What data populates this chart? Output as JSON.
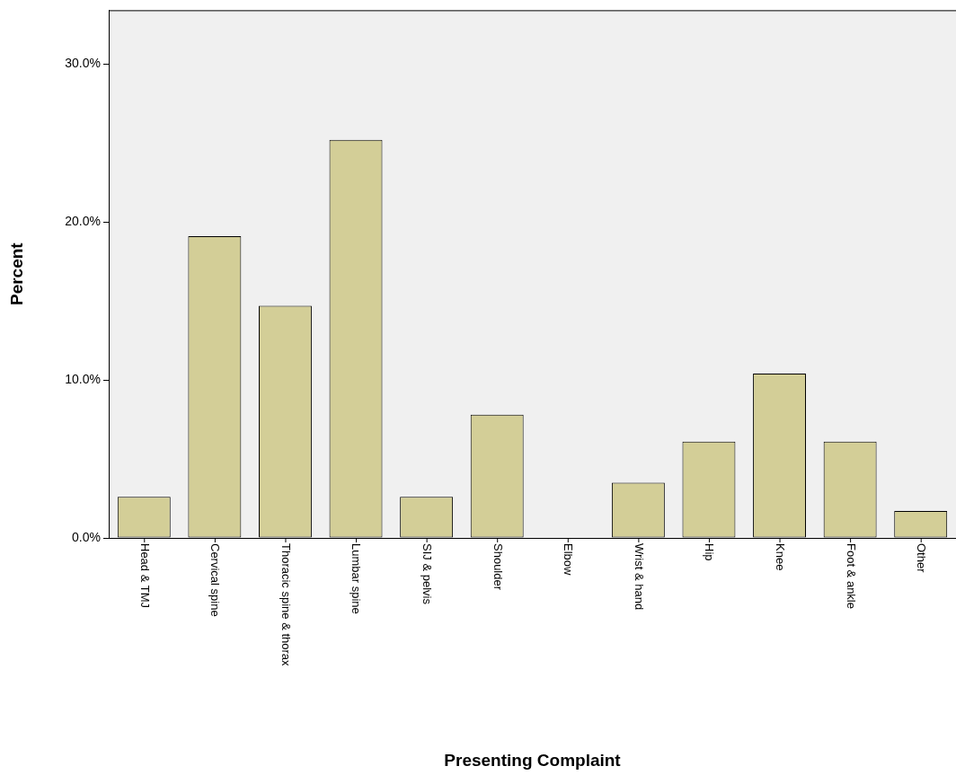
{
  "chart_data": {
    "type": "bar",
    "xlabel": "Presenting Complaint",
    "ylabel": "Percent",
    "categories": [
      "Head & TMJ",
      "Cervical spine",
      "Thoracic spine & thorax",
      "Lumbar spine",
      "SIJ & pelvis",
      "Shoulder",
      "Elbow",
      "Wrist & hand",
      "Hip",
      "Knee",
      "Foot & ankle",
      "Other"
    ],
    "values": [
      2.6,
      19.1,
      14.7,
      25.2,
      2.6,
      7.8,
      0,
      3.5,
      6.1,
      10.4,
      6.1,
      1.7
    ],
    "color": "#d3ce97",
    "ylim": [
      0,
      33.4
    ],
    "yticks": [
      {
        "value": 0,
        "label": "0.0%"
      },
      {
        "value": 10,
        "label": "10.0%"
      },
      {
        "value": 20,
        "label": "20.0%"
      },
      {
        "value": 30,
        "label": "30.0%"
      }
    ],
    "grid": false,
    "legend": false
  }
}
